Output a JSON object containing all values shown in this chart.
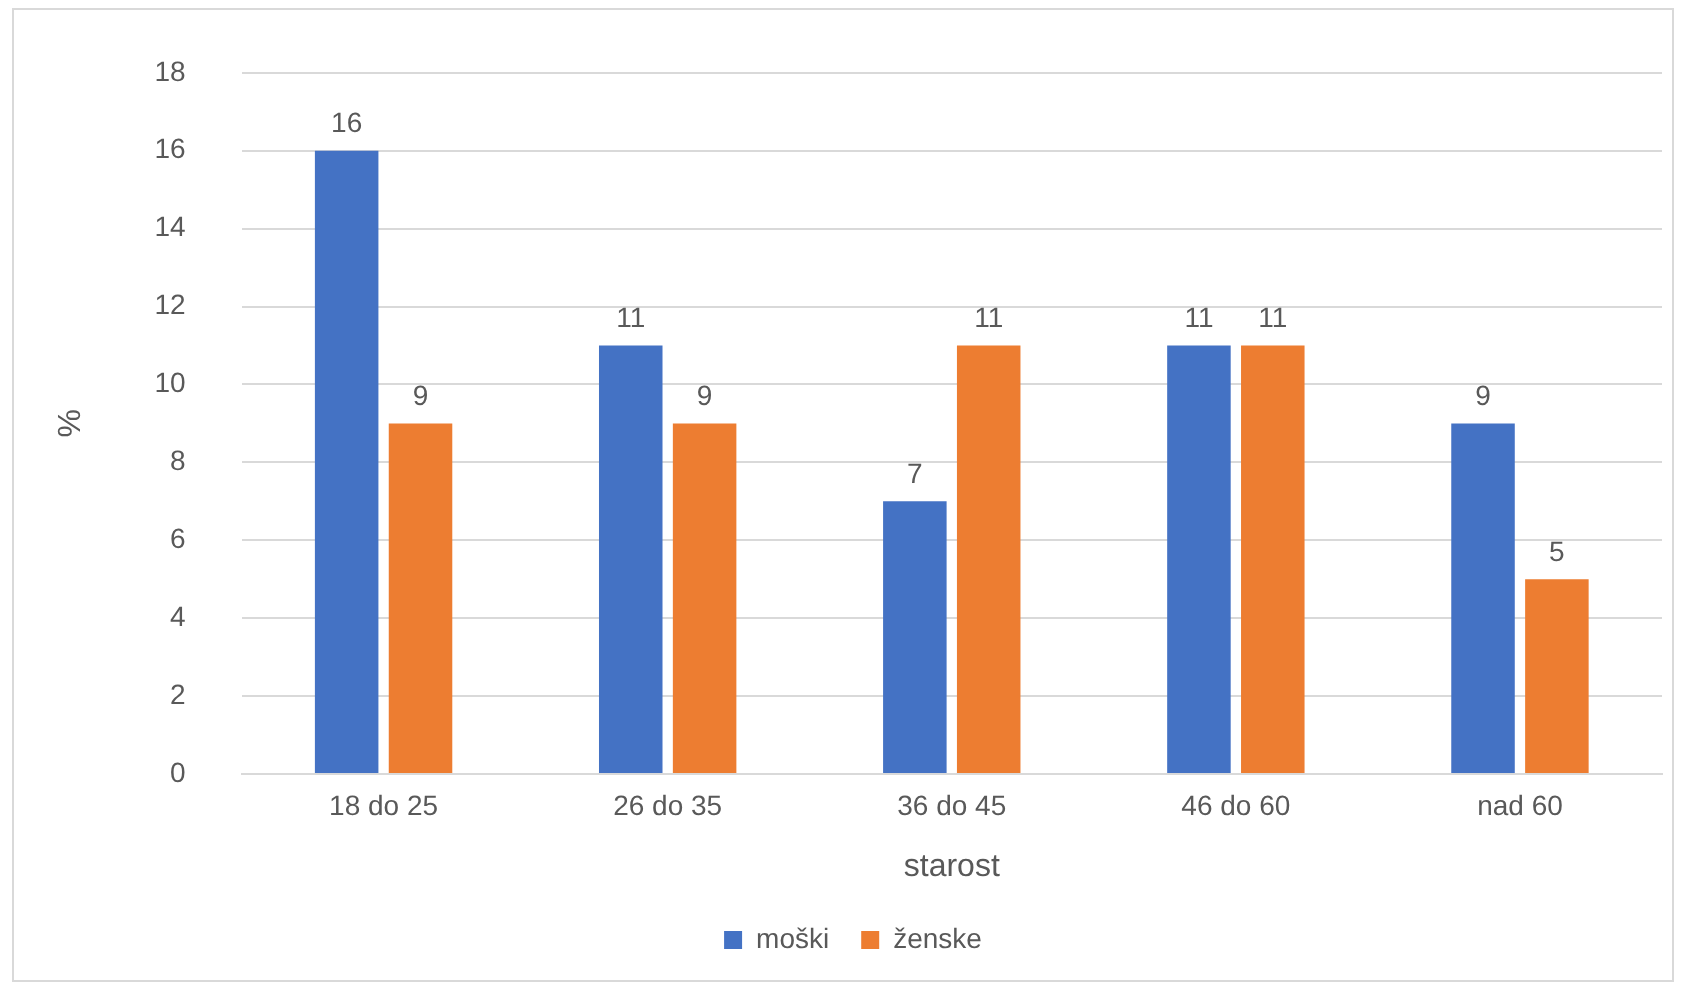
{
  "chart_data": {
    "type": "bar",
    "xlabel": "starost",
    "ylabel": "%",
    "categories": [
      "18 do 25",
      "26 do 35",
      "36 do 45",
      "46 do 60",
      "nad 60"
    ],
    "series": [
      {
        "name": "moški",
        "color": "#4472c4",
        "values": [
          16,
          11,
          7,
          11,
          9
        ]
      },
      {
        "name": "ženske",
        "color": "#ed7d31",
        "values": [
          9,
          9,
          11,
          11,
          5
        ]
      }
    ],
    "ylim": [
      0,
      18
    ],
    "yticks": [
      0,
      2,
      4,
      6,
      8,
      10,
      12,
      14,
      16,
      18
    ],
    "grid": "y",
    "legend": "bottom",
    "data_labels": true
  }
}
